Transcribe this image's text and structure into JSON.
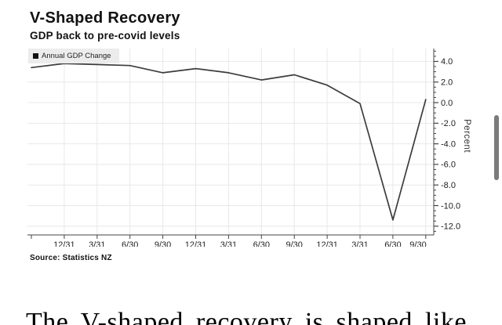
{
  "header": {
    "title": "V-Shaped Recovery",
    "subtitle": "GDP back to pre-covid levels"
  },
  "chart_data": {
    "type": "line",
    "title": "V-Shaped Recovery",
    "subtitle": "GDP back to pre-covid levels",
    "ylabel": "Percent",
    "xlabel": "",
    "source": "Source: Statistics NZ",
    "legend_position": "top-left",
    "grid": true,
    "x_tick_labels": [
      "12/31",
      "3/31",
      "6/30",
      "9/30",
      "12/31",
      "3/31",
      "6/30",
      "9/30",
      "12/31",
      "3/31",
      "6/30",
      "9/30"
    ],
    "x_layout_note": "13 quarterly points; first point sits at plot left edge one quarter before the first labeled tick",
    "series": [
      {
        "name": "Annual GDP Change",
        "values": [
          3.4,
          3.8,
          3.7,
          3.6,
          2.9,
          3.3,
          2.9,
          2.2,
          2.7,
          1.7,
          -0.1,
          -11.4,
          0.3
        ]
      }
    ],
    "yticks": [
      4.0,
      2.0,
      0.0,
      -2.0,
      -4.0,
      -6.0,
      -8.0,
      -10.0,
      -12.0
    ],
    "minor_tick_step": 0.5,
    "ylim": [
      -12.85,
      5.25
    ]
  },
  "colors": {
    "line": "#3c3c3c",
    "grid": "#e8e8e8",
    "axis": "#444444",
    "tick_label": "#222222",
    "legend_bg": "#ececec",
    "scrollbar": "#7b7b7b"
  },
  "article": {
    "text_preview": "The V-shaped recovery is shaped like"
  }
}
